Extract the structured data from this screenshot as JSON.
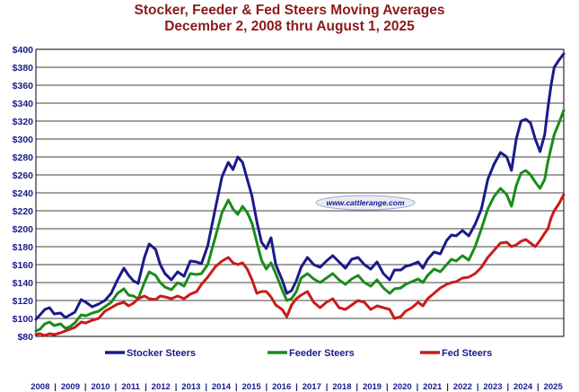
{
  "chart_data": {
    "type": "line",
    "title": "Stocker, Feeder & Fed Steers Moving Averages",
    "subtitle": "December 2, 2008 thru August 1, 2025",
    "ylim": [
      80,
      400
    ],
    "yticks": [
      80,
      100,
      120,
      140,
      160,
      180,
      200,
      220,
      240,
      260,
      280,
      300,
      320,
      340,
      360,
      380,
      400
    ],
    "ytick_labels": [
      "$80",
      "$100",
      "$120",
      "$140",
      "$160",
      "$180",
      "$200",
      "$220",
      "$240",
      "$260",
      "$280",
      "$300",
      "$320",
      "$340",
      "$360",
      "$380",
      "$400"
    ],
    "xlim": [
      2008.92,
      2025.6
    ],
    "x_labels": [
      "2008",
      "2009",
      "2010",
      "2011",
      "2012",
      "2013",
      "2014",
      "2015",
      "2016",
      "2017",
      "2018",
      "2019",
      "2020",
      "2021",
      "2022",
      "2023",
      "2024",
      "2025"
    ],
    "grid": true,
    "legend_position": "bottom",
    "watermark": "www.cattlerange.com",
    "series": [
      {
        "name": "Stocker Steers",
        "color": "#1a1a8c",
        "points": [
          [
            2008.92,
            99
          ],
          [
            2009.05,
            104
          ],
          [
            2009.2,
            110
          ],
          [
            2009.35,
            112
          ],
          [
            2009.5,
            105
          ],
          [
            2009.7,
            106
          ],
          [
            2009.85,
            101
          ],
          [
            2010.0,
            104
          ],
          [
            2010.15,
            107
          ],
          [
            2010.35,
            121
          ],
          [
            2010.5,
            118
          ],
          [
            2010.7,
            113
          ],
          [
            2010.9,
            116
          ],
          [
            2011.1,
            120
          ],
          [
            2011.3,
            128
          ],
          [
            2011.5,
            143
          ],
          [
            2011.7,
            156
          ],
          [
            2011.85,
            148
          ],
          [
            2012.0,
            142
          ],
          [
            2012.15,
            139
          ],
          [
            2012.35,
            168
          ],
          [
            2012.5,
            183
          ],
          [
            2012.7,
            177
          ],
          [
            2012.85,
            160
          ],
          [
            2013.0,
            150
          ],
          [
            2013.2,
            143
          ],
          [
            2013.4,
            152
          ],
          [
            2013.6,
            147
          ],
          [
            2013.8,
            164
          ],
          [
            2014.0,
            163
          ],
          [
            2014.15,
            161
          ],
          [
            2014.35,
            181
          ],
          [
            2014.6,
            224
          ],
          [
            2014.8,
            258
          ],
          [
            2015.0,
            274
          ],
          [
            2015.15,
            266
          ],
          [
            2015.3,
            280
          ],
          [
            2015.45,
            274
          ],
          [
            2015.6,
            255
          ],
          [
            2015.75,
            236
          ],
          [
            2015.9,
            208
          ],
          [
            2016.05,
            185
          ],
          [
            2016.2,
            178
          ],
          [
            2016.35,
            190
          ],
          [
            2016.5,
            160
          ],
          [
            2016.7,
            143
          ],
          [
            2016.85,
            128
          ],
          [
            2017.0,
            131
          ],
          [
            2017.15,
            142
          ],
          [
            2017.3,
            157
          ],
          [
            2017.5,
            168
          ],
          [
            2017.7,
            160
          ],
          [
            2017.9,
            157
          ],
          [
            2018.1,
            164
          ],
          [
            2018.3,
            170
          ],
          [
            2018.5,
            163
          ],
          [
            2018.7,
            156
          ],
          [
            2018.9,
            166
          ],
          [
            2019.1,
            168
          ],
          [
            2019.3,
            160
          ],
          [
            2019.5,
            155
          ],
          [
            2019.7,
            163
          ],
          [
            2019.9,
            150
          ],
          [
            2020.1,
            143
          ],
          [
            2020.25,
            154
          ],
          [
            2020.45,
            154
          ],
          [
            2020.6,
            158
          ],
          [
            2020.8,
            160
          ],
          [
            2021.0,
            163
          ],
          [
            2021.15,
            156
          ],
          [
            2021.3,
            166
          ],
          [
            2021.5,
            174
          ],
          [
            2021.7,
            172
          ],
          [
            2021.9,
            187
          ],
          [
            2022.05,
            193
          ],
          [
            2022.2,
            192
          ],
          [
            2022.4,
            198
          ],
          [
            2022.6,
            192
          ],
          [
            2022.8,
            205
          ],
          [
            2023.0,
            222
          ],
          [
            2023.2,
            255
          ],
          [
            2023.4,
            272
          ],
          [
            2023.6,
            285
          ],
          [
            2023.8,
            280
          ],
          [
            2023.95,
            265
          ],
          [
            2024.1,
            300
          ],
          [
            2024.25,
            320
          ],
          [
            2024.4,
            322
          ],
          [
            2024.55,
            318
          ],
          [
            2024.7,
            300
          ],
          [
            2024.85,
            286
          ],
          [
            2025.0,
            305
          ],
          [
            2025.1,
            335
          ],
          [
            2025.2,
            360
          ],
          [
            2025.3,
            380
          ],
          [
            2025.45,
            388
          ],
          [
            2025.6,
            395
          ]
        ]
      },
      {
        "name": "Feeder Steers",
        "color": "#1a8c1a",
        "points": [
          [
            2008.92,
            86
          ],
          [
            2009.05,
            88
          ],
          [
            2009.2,
            94
          ],
          [
            2009.35,
            96
          ],
          [
            2009.5,
            92
          ],
          [
            2009.7,
            94
          ],
          [
            2009.85,
            89
          ],
          [
            2010.0,
            91
          ],
          [
            2010.15,
            95
          ],
          [
            2010.35,
            104
          ],
          [
            2010.5,
            103
          ],
          [
            2010.7,
            106
          ],
          [
            2010.9,
            108
          ],
          [
            2011.1,
            113
          ],
          [
            2011.3,
            118
          ],
          [
            2011.5,
            128
          ],
          [
            2011.7,
            133
          ],
          [
            2011.85,
            126
          ],
          [
            2012.0,
            125
          ],
          [
            2012.15,
            122
          ],
          [
            2012.35,
            140
          ],
          [
            2012.5,
            152
          ],
          [
            2012.7,
            148
          ],
          [
            2012.85,
            140
          ],
          [
            2013.0,
            135
          ],
          [
            2013.2,
            132
          ],
          [
            2013.4,
            140
          ],
          [
            2013.6,
            136
          ],
          [
            2013.8,
            150
          ],
          [
            2014.0,
            149
          ],
          [
            2014.15,
            150
          ],
          [
            2014.35,
            160
          ],
          [
            2014.6,
            192
          ],
          [
            2014.8,
            218
          ],
          [
            2015.0,
            232
          ],
          [
            2015.15,
            222
          ],
          [
            2015.3,
            216
          ],
          [
            2015.45,
            225
          ],
          [
            2015.6,
            218
          ],
          [
            2015.75,
            206
          ],
          [
            2015.9,
            185
          ],
          [
            2016.05,
            165
          ],
          [
            2016.2,
            155
          ],
          [
            2016.35,
            162
          ],
          [
            2016.5,
            150
          ],
          [
            2016.7,
            132
          ],
          [
            2016.85,
            120
          ],
          [
            2017.0,
            122
          ],
          [
            2017.15,
            130
          ],
          [
            2017.3,
            145
          ],
          [
            2017.5,
            150
          ],
          [
            2017.7,
            144
          ],
          [
            2017.9,
            140
          ],
          [
            2018.1,
            145
          ],
          [
            2018.3,
            150
          ],
          [
            2018.5,
            143
          ],
          [
            2018.7,
            138
          ],
          [
            2018.9,
            144
          ],
          [
            2019.1,
            148
          ],
          [
            2019.3,
            140
          ],
          [
            2019.5,
            136
          ],
          [
            2019.7,
            143
          ],
          [
            2019.9,
            134
          ],
          [
            2020.1,
            128
          ],
          [
            2020.25,
            133
          ],
          [
            2020.45,
            134
          ],
          [
            2020.6,
            138
          ],
          [
            2020.8,
            141
          ],
          [
            2021.0,
            144
          ],
          [
            2021.15,
            140
          ],
          [
            2021.3,
            148
          ],
          [
            2021.5,
            155
          ],
          [
            2021.7,
            152
          ],
          [
            2021.9,
            160
          ],
          [
            2022.05,
            166
          ],
          [
            2022.2,
            164
          ],
          [
            2022.4,
            170
          ],
          [
            2022.6,
            165
          ],
          [
            2022.8,
            180
          ],
          [
            2023.0,
            200
          ],
          [
            2023.2,
            222
          ],
          [
            2023.4,
            236
          ],
          [
            2023.6,
            245
          ],
          [
            2023.8,
            238
          ],
          [
            2023.95,
            225
          ],
          [
            2024.1,
            248
          ],
          [
            2024.25,
            262
          ],
          [
            2024.4,
            265
          ],
          [
            2024.55,
            260
          ],
          [
            2024.7,
            252
          ],
          [
            2024.85,
            245
          ],
          [
            2025.0,
            255
          ],
          [
            2025.1,
            275
          ],
          [
            2025.2,
            290
          ],
          [
            2025.3,
            305
          ],
          [
            2025.45,
            318
          ],
          [
            2025.6,
            332
          ]
        ]
      },
      {
        "name": "Fed Steers",
        "color": "#cc1a1a",
        "points": [
          [
            2008.92,
            82
          ],
          [
            2009.05,
            83
          ],
          [
            2009.2,
            81
          ],
          [
            2009.35,
            83
          ],
          [
            2009.5,
            82
          ],
          [
            2009.7,
            84
          ],
          [
            2009.85,
            86
          ],
          [
            2010.0,
            88
          ],
          [
            2010.15,
            90
          ],
          [
            2010.35,
            96
          ],
          [
            2010.5,
            95
          ],
          [
            2010.7,
            98
          ],
          [
            2010.9,
            100
          ],
          [
            2011.1,
            108
          ],
          [
            2011.3,
            112
          ],
          [
            2011.5,
            116
          ],
          [
            2011.7,
            118
          ],
          [
            2011.85,
            114
          ],
          [
            2012.0,
            117
          ],
          [
            2012.15,
            122
          ],
          [
            2012.35,
            125
          ],
          [
            2012.5,
            122
          ],
          [
            2012.7,
            121
          ],
          [
            2012.85,
            125
          ],
          [
            2013.0,
            124
          ],
          [
            2013.2,
            122
          ],
          [
            2013.4,
            125
          ],
          [
            2013.6,
            122
          ],
          [
            2013.8,
            127
          ],
          [
            2014.0,
            130
          ],
          [
            2014.15,
            138
          ],
          [
            2014.35,
            146
          ],
          [
            2014.6,
            158
          ],
          [
            2014.8,
            164
          ],
          [
            2015.0,
            168
          ],
          [
            2015.15,
            162
          ],
          [
            2015.3,
            160
          ],
          [
            2015.45,
            162
          ],
          [
            2015.6,
            155
          ],
          [
            2015.75,
            143
          ],
          [
            2015.9,
            128
          ],
          [
            2016.05,
            130
          ],
          [
            2016.2,
            130
          ],
          [
            2016.35,
            124
          ],
          [
            2016.5,
            115
          ],
          [
            2016.7,
            110
          ],
          [
            2016.85,
            102
          ],
          [
            2017.0,
            115
          ],
          [
            2017.15,
            122
          ],
          [
            2017.3,
            126
          ],
          [
            2017.5,
            130
          ],
          [
            2017.7,
            118
          ],
          [
            2017.9,
            112
          ],
          [
            2018.1,
            118
          ],
          [
            2018.3,
            122
          ],
          [
            2018.5,
            112
          ],
          [
            2018.7,
            110
          ],
          [
            2018.9,
            115
          ],
          [
            2019.1,
            120
          ],
          [
            2019.3,
            118
          ],
          [
            2019.5,
            110
          ],
          [
            2019.7,
            114
          ],
          [
            2019.9,
            112
          ],
          [
            2020.1,
            110
          ],
          [
            2020.25,
            100
          ],
          [
            2020.45,
            102
          ],
          [
            2020.6,
            108
          ],
          [
            2020.8,
            112
          ],
          [
            2021.0,
            118
          ],
          [
            2021.15,
            114
          ],
          [
            2021.3,
            122
          ],
          [
            2021.5,
            128
          ],
          [
            2021.7,
            134
          ],
          [
            2021.9,
            138
          ],
          [
            2022.05,
            140
          ],
          [
            2022.2,
            141
          ],
          [
            2022.4,
            145
          ],
          [
            2022.6,
            146
          ],
          [
            2022.8,
            150
          ],
          [
            2023.0,
            157
          ],
          [
            2023.2,
            168
          ],
          [
            2023.4,
            176
          ],
          [
            2023.6,
            184
          ],
          [
            2023.8,
            185
          ],
          [
            2023.95,
            180
          ],
          [
            2024.1,
            182
          ],
          [
            2024.25,
            186
          ],
          [
            2024.4,
            188
          ],
          [
            2024.55,
            184
          ],
          [
            2024.7,
            180
          ],
          [
            2024.85,
            187
          ],
          [
            2025.0,
            195
          ],
          [
            2025.1,
            200
          ],
          [
            2025.2,
            212
          ],
          [
            2025.3,
            220
          ],
          [
            2025.45,
            228
          ],
          [
            2025.6,
            238
          ]
        ]
      }
    ]
  }
}
